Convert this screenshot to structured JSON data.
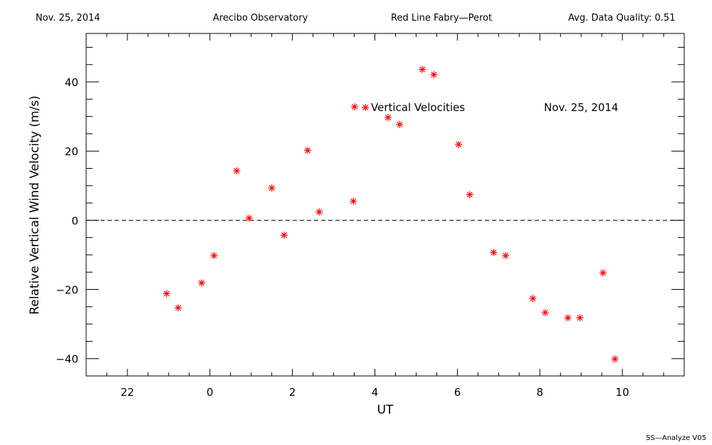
{
  "header": {
    "date": "Nov. 25, 2014",
    "site": "Arecibo Observatory",
    "instrument": "Red Line Fabry—Perot",
    "quality": "Avg. Data Quality: 0.51"
  },
  "footer": {
    "version": "SS—Analyze V05"
  },
  "colors": {
    "marker": "#ff0000",
    "axis": "#000000"
  },
  "chart_data": {
    "type": "scatter",
    "xlabel": "UT",
    "ylabel": "Relative Vertical Wind Velocity (m/s)",
    "xlim": [
      21.0,
      35.5
    ],
    "ylim": [
      -45,
      54
    ],
    "xticks": [
      22,
      24,
      26,
      28,
      30,
      32,
      34
    ],
    "xtick_labels": [
      "22",
      "0",
      "2",
      "4",
      "6",
      "8",
      "10"
    ],
    "yticks": [
      -40,
      -20,
      0,
      20,
      40
    ],
    "ytick_labels": [
      "−40",
      "−20",
      "0",
      "20",
      "40"
    ],
    "reference_line": {
      "y": 0,
      "style": "dashed"
    },
    "legend": {
      "marker": "*",
      "label": "Vertical Velocities",
      "date": "Nov. 25, 2014"
    },
    "series": [
      {
        "name": "Vertical Velocities",
        "x": [
          22.95,
          23.23,
          23.8,
          24.1,
          24.65,
          24.95,
          25.5,
          25.8,
          26.37,
          26.65,
          27.48,
          27.77,
          28.32,
          28.6,
          29.15,
          29.43,
          30.03,
          30.3,
          30.88,
          31.17,
          31.83,
          32.13,
          32.68,
          32.97,
          33.53,
          33.82
        ],
        "y": [
          -21.2,
          -25.3,
          -18.1,
          -10.2,
          14.3,
          0.6,
          9.3,
          -4.3,
          20.2,
          2.4,
          5.5,
          32.6,
          29.7,
          27.7,
          43.6,
          42.1,
          21.9,
          7.4,
          -9.3,
          -10.2,
          -22.6,
          -26.7,
          -28.2,
          -28.2,
          -15.2,
          -40.1
        ]
      }
    ]
  }
}
